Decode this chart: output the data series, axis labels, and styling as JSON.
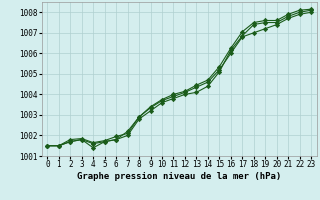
{
  "xlabel": "Graphe pression niveau de la mer (hPa)",
  "background_color": "#d4eeee",
  "grid_color": "#b0d0d0",
  "line_color": "#1a5c1a",
  "x": [
    0,
    1,
    2,
    3,
    4,
    5,
    6,
    7,
    8,
    9,
    10,
    11,
    12,
    13,
    14,
    15,
    16,
    17,
    18,
    19,
    20,
    21,
    22,
    23
  ],
  "line1": [
    1001.5,
    1001.5,
    1001.7,
    1001.8,
    1001.4,
    1001.7,
    1001.8,
    1002.2,
    1002.9,
    1003.35,
    1003.7,
    1003.9,
    1004.1,
    1004.35,
    1004.6,
    1005.2,
    1006.0,
    1006.8,
    1007.0,
    1007.2,
    1007.4,
    1007.7,
    1007.9,
    1008.0
  ],
  "line2": [
    1001.5,
    1001.5,
    1001.7,
    1001.8,
    1001.6,
    1001.7,
    1001.8,
    1002.0,
    1002.8,
    1003.2,
    1003.6,
    1003.8,
    1004.0,
    1004.1,
    1004.4,
    1005.1,
    1006.15,
    1006.85,
    1007.4,
    1007.5,
    1007.5,
    1007.8,
    1008.0,
    1008.1
  ],
  "line3": [
    1001.5,
    1001.5,
    1001.8,
    1001.85,
    1001.65,
    1001.75,
    1001.95,
    1002.1,
    1002.9,
    1003.4,
    1003.75,
    1004.0,
    1004.15,
    1004.45,
    1004.7,
    1005.35,
    1006.25,
    1007.05,
    1007.5,
    1007.6,
    1007.6,
    1007.9,
    1008.1,
    1008.15
  ],
  "ylim": [
    1001.0,
    1008.5
  ],
  "yticks": [
    1001,
    1002,
    1003,
    1004,
    1005,
    1006,
    1007,
    1008
  ],
  "xticks": [
    0,
    1,
    2,
    3,
    4,
    5,
    6,
    7,
    8,
    9,
    10,
    11,
    12,
    13,
    14,
    15,
    16,
    17,
    18,
    19,
    20,
    21,
    22,
    23
  ],
  "marker": "D",
  "markersize": 2.2,
  "linewidth": 0.8,
  "xlabel_fontsize": 6.5,
  "tick_fontsize": 5.5
}
